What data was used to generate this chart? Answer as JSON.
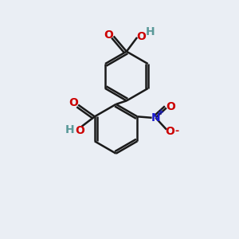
{
  "bg_color": "#eaeef4",
  "bond_color": "#1a1a1a",
  "oxygen_color": "#cc0000",
  "nitrogen_color": "#1a1acc",
  "hydrogen_color": "#5a9999",
  "line_width": 1.8,
  "figsize": [
    3.0,
    3.0
  ],
  "dpi": 100,
  "xlim": [
    0,
    10
  ],
  "ylim": [
    0,
    10
  ]
}
